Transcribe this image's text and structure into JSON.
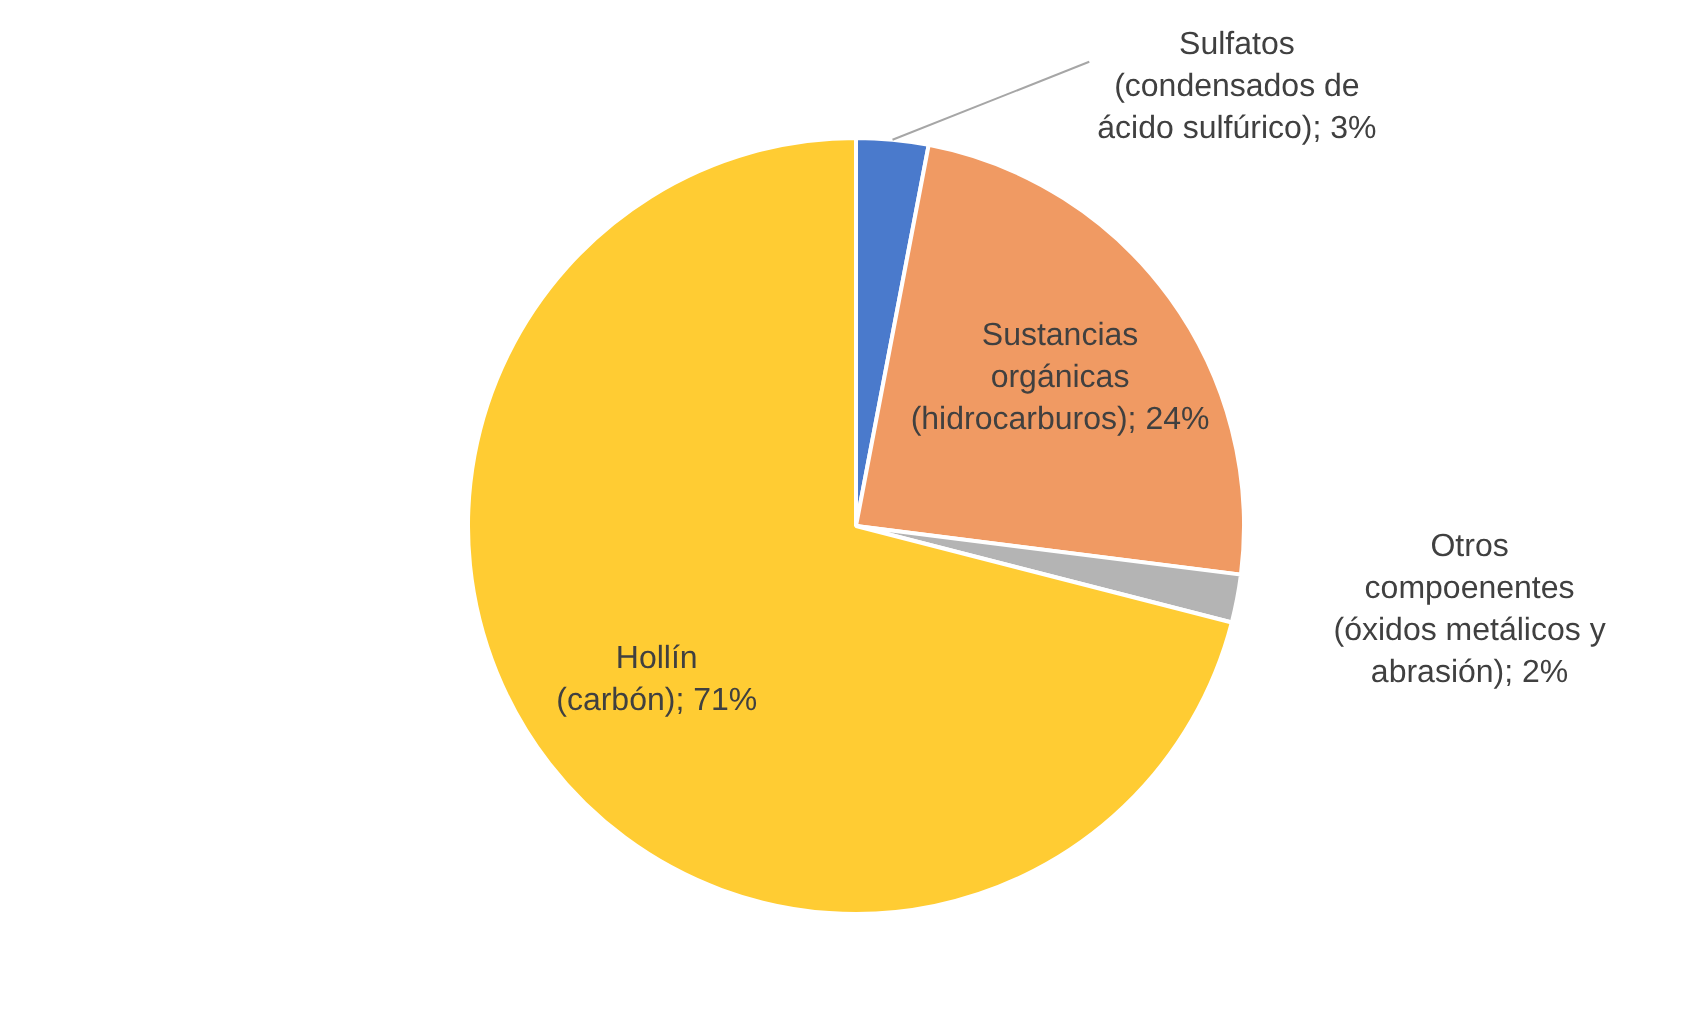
{
  "chart_data": {
    "type": "pie",
    "categories": [
      "Sulfatos (condensados de ácido sulfúrico)",
      "Sustancias orgánicas (hidrocarburos)",
      "Otros compoenentes (óxidos metálicos y abrasión)",
      "Hollín (carbón)"
    ],
    "values": [
      3,
      24,
      2,
      71
    ],
    "value_labels": [
      "3%",
      "24%",
      "2%",
      "71%"
    ],
    "colors": [
      "#4a7acc",
      "#f09a63",
      "#b4b4b4",
      "#ffcc33"
    ],
    "legend": false
  }
}
